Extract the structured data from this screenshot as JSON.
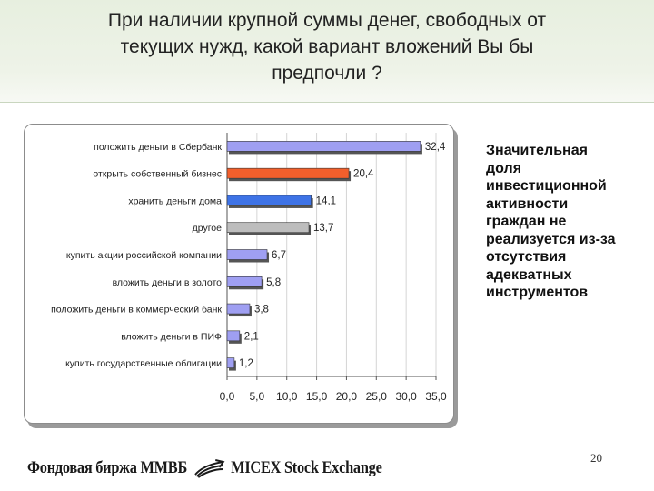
{
  "header": {
    "title_line1": "При наличии крупной суммы денег, свободных от",
    "title_line2": "текущих нужд, какой вариант вложений Вы бы",
    "title_line3": "предпочли ?"
  },
  "side_note": {
    "lines": [
      "Значительная",
      "доля",
      "инвестиционной",
      "активности",
      "граждан не",
      "реализуется из-за",
      "отсутствия",
      "адекватных",
      "инструментов"
    ]
  },
  "footer": {
    "logo_left": "Фондовая биржа ММВБ",
    "logo_right": "MICEX Stock Exchange",
    "page_number": "20"
  },
  "chart_data": {
    "type": "bar",
    "orientation": "horizontal",
    "title": "",
    "xlabel": "",
    "ylabel": "",
    "categories": [
      "положить деньги в Сбербанк",
      "открыть собственный бизнес",
      "хранить деньги дома",
      "другое",
      "купить акции российской компании",
      "вложить деньги в золото",
      "положить деньги в коммерческий банк",
      "вложить деньги в ПИФ",
      "купить государственные облигации"
    ],
    "values": [
      32.4,
      20.4,
      14.1,
      13.7,
      6.7,
      5.8,
      3.8,
      2.1,
      1.2
    ],
    "value_labels": [
      "32,4",
      "20,4",
      "14,1",
      "13,7",
      "6,7",
      "5,8",
      "3,8",
      "2,1",
      "1,2"
    ],
    "bar_colors": [
      "#9f9ff2",
      "#f25f2c",
      "#3e73e6",
      "#bdbdbd",
      "#9f9ff2",
      "#9f9ff2",
      "#9f9ff2",
      "#9f9ff2",
      "#9f9ff2"
    ],
    "xlim": [
      0,
      35
    ],
    "x_ticks": [
      0,
      5,
      10,
      15,
      20,
      25,
      30,
      35
    ],
    "x_tick_labels": [
      "0,0",
      "5,0",
      "10,0",
      "15,0",
      "20,0",
      "25,0",
      "30,0",
      "35,0"
    ],
    "grid": true,
    "legend": "none"
  }
}
